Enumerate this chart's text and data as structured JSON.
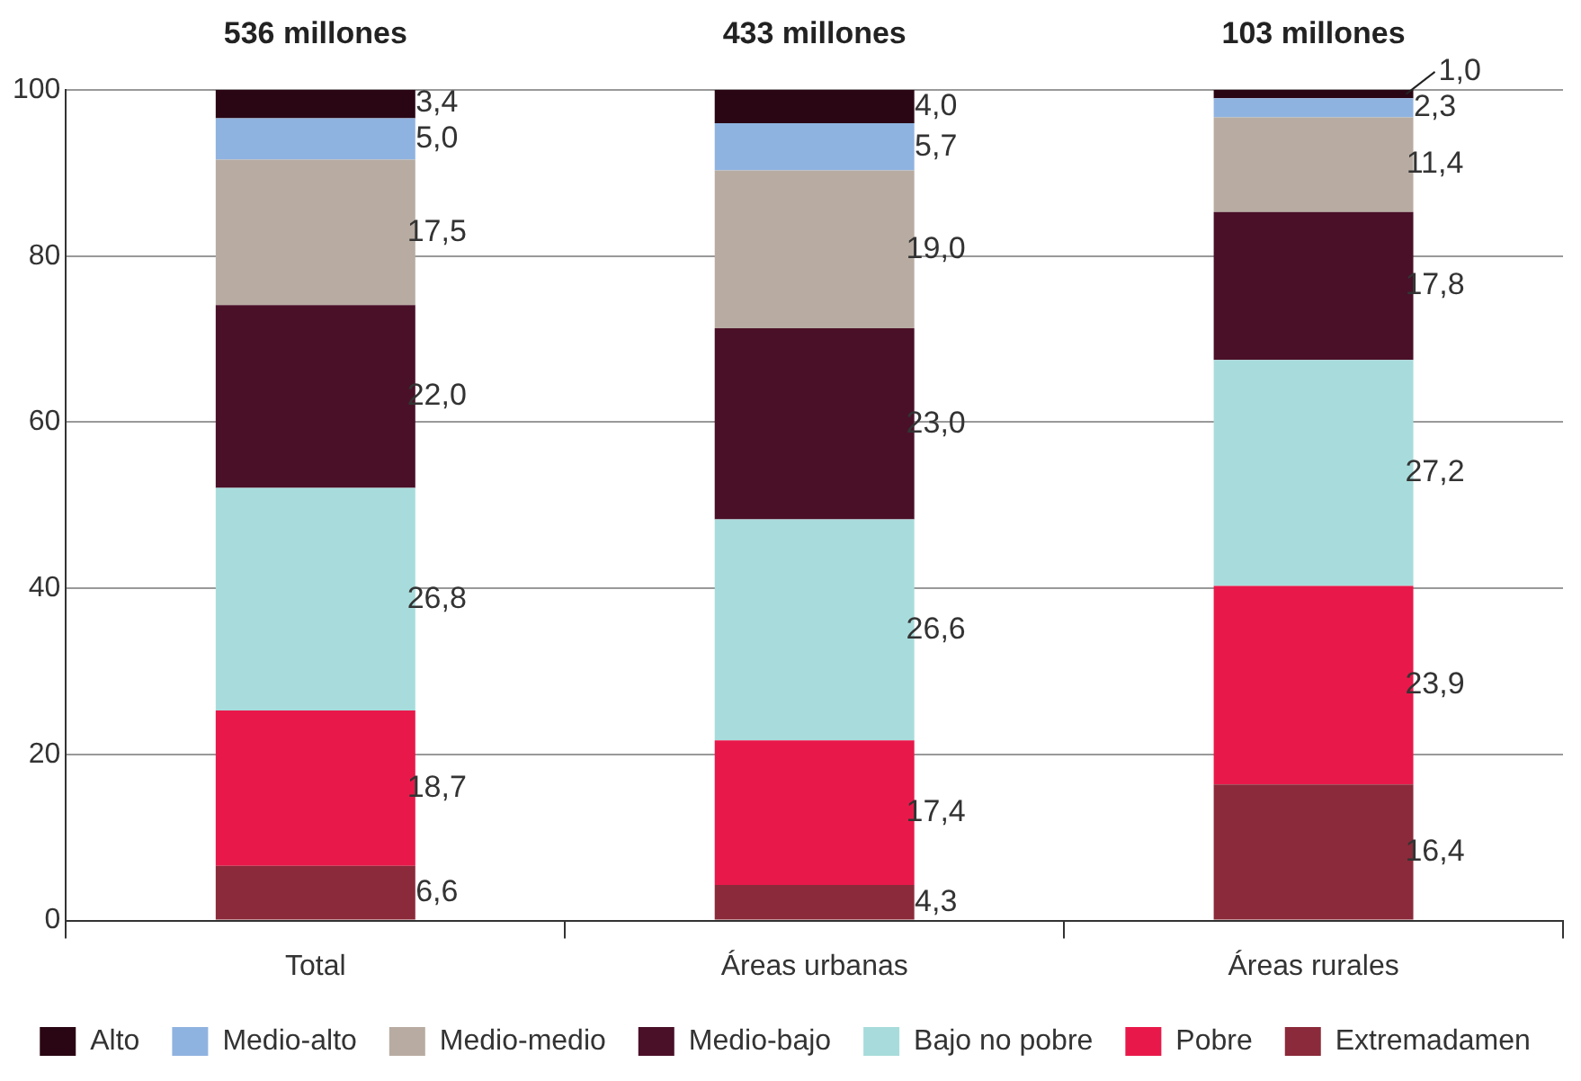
{
  "chart_data": {
    "type": "bar",
    "stacked": true,
    "categories": [
      "Total",
      "Áreas urbanas",
      "Áreas rurales"
    ],
    "series": [
      {
        "name": "Extremadamen",
        "color": "#8b2a3a",
        "values": [
          6.6,
          4.3,
          16.4
        ],
        "value_labels": [
          "6,6",
          "4,3",
          "16,4"
        ]
      },
      {
        "name": "Pobre",
        "color": "#e8194a",
        "values": [
          18.7,
          17.4,
          23.9
        ],
        "value_labels": [
          "18,7",
          "17,4",
          "23,9"
        ]
      },
      {
        "name": "Bajo no pobre",
        "color": "#a8dcdc",
        "values": [
          26.8,
          26.6,
          27.2
        ],
        "value_labels": [
          "26,8",
          "26,6",
          "27,2"
        ]
      },
      {
        "name": "Medio-bajo",
        "color": "#4a1028",
        "values": [
          22.0,
          23.0,
          17.8
        ],
        "value_labels": [
          "22,0",
          "23,0",
          "17,8"
        ]
      },
      {
        "name": "Medio-medio",
        "color": "#b8aca2",
        "values": [
          17.5,
          19.0,
          11.4
        ],
        "value_labels": [
          "17,5",
          "19,0",
          "11,4"
        ]
      },
      {
        "name": "Medio-alto",
        "color": "#8fb3e0",
        "values": [
          5.0,
          5.7,
          2.3
        ],
        "value_labels": [
          "5,0",
          "5,7",
          "2,3"
        ]
      },
      {
        "name": "Alto",
        "color": "#2a0614",
        "values": [
          3.4,
          4.0,
          1.0
        ],
        "value_labels": [
          "3,4",
          "4,0",
          "1,0"
        ]
      }
    ],
    "annotations": [
      {
        "text": "536 millones",
        "x": "Total",
        "y": 100
      },
      {
        "text": "433 millones",
        "x": "Áreas urbanas",
        "y": 100
      },
      {
        "text": "103 millones",
        "x": "Áreas rurales",
        "y": 100
      }
    ],
    "ylim": [
      0,
      100
    ],
    "yticks": [
      0,
      20,
      40,
      60,
      80,
      100
    ],
    "grid": "y",
    "legend": "bottom"
  }
}
